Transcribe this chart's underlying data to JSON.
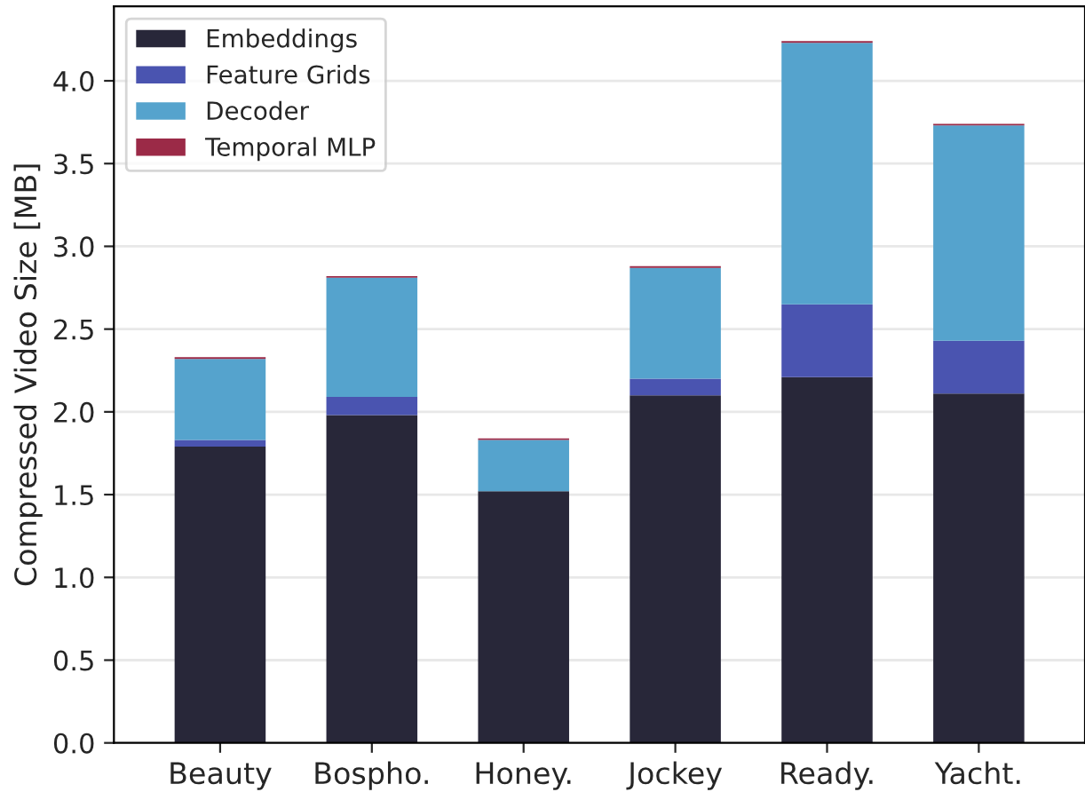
{
  "chart_data": {
    "type": "bar",
    "stacked": true,
    "ylabel": "Compressed Video Size [MB]",
    "categories": [
      "Beauty",
      "Bospho.",
      "Honey.",
      "Jockey",
      "Ready.",
      "Yacht."
    ],
    "series": [
      {
        "name": "Embeddings",
        "color": "#282739",
        "values": [
          1.79,
          1.98,
          1.52,
          2.1,
          2.21,
          2.11
        ]
      },
      {
        "name": "Feature Grids",
        "color": "#4a54b0",
        "values": [
          0.04,
          0.11,
          0.0,
          0.1,
          0.44,
          0.32
        ]
      },
      {
        "name": "Decoder",
        "color": "#55a3cd",
        "values": [
          0.49,
          0.72,
          0.31,
          0.67,
          1.58,
          1.3
        ]
      },
      {
        "name": "Temporal MLP",
        "color": "#9b2a47",
        "values": [
          0.01,
          0.01,
          0.01,
          0.01,
          0.01,
          0.01
        ]
      }
    ],
    "ylim": [
      0,
      4.45
    ],
    "yticks": [
      {
        "value": 0,
        "label": "0.0"
      },
      0.5,
      {
        "value": 1,
        "label": "1.0"
      },
      1.5,
      {
        "value": 2,
        "label": "2.0"
      },
      2.5,
      {
        "value": 3,
        "label": "3.0"
      },
      3.5,
      {
        "value": 4,
        "label": "4.0"
      }
    ],
    "grid": "y",
    "legend": "top left"
  }
}
